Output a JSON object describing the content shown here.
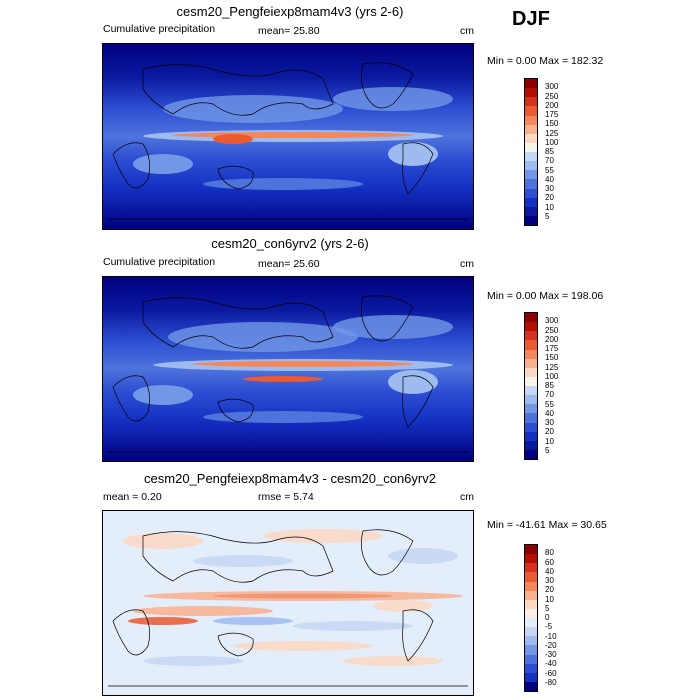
{
  "season": "DJF",
  "panels": [
    {
      "title": "cesm20_Pengfeiexp8mam4v3 (yrs 2-6)",
      "left_label": "Cumulative precipitation",
      "mid_label": "mean=  25.80",
      "unit": "cm",
      "minmax": "Min =   0.00 Max = 182.32",
      "colorbar": {
        "labels": [
          "300",
          "250",
          "200",
          "175",
          "150",
          "125",
          "100",
          "85",
          "70",
          "55",
          "40",
          "30",
          "20",
          "10",
          "5"
        ],
        "colors": [
          "#8b0000",
          "#b40e00",
          "#d7301f",
          "#ec5a32",
          "#f4875a",
          "#fab08d",
          "#fcd8c2",
          "#f7f2ea",
          "#c6d7f5",
          "#9ebbf0",
          "#7297e6",
          "#4f73dc",
          "#2d4fd3",
          "#1430c2",
          "#0a1aa0",
          "#000080"
        ]
      }
    },
    {
      "title": "cesm20_con6yrv2 (yrs 2-6)",
      "left_label": "Cumulative precipitation",
      "mid_label": "mean=  25.60",
      "unit": "cm",
      "minmax": "Min =   0.00 Max = 198.06",
      "colorbar": {
        "labels": [
          "300",
          "250",
          "200",
          "175",
          "150",
          "125",
          "100",
          "85",
          "70",
          "55",
          "40",
          "30",
          "20",
          "10",
          "5"
        ],
        "colors": [
          "#8b0000",
          "#b40e00",
          "#d7301f",
          "#ec5a32",
          "#f4875a",
          "#fab08d",
          "#fcd8c2",
          "#f7f2ea",
          "#c6d7f5",
          "#9ebbf0",
          "#7297e6",
          "#4f73dc",
          "#2d4fd3",
          "#1430c2",
          "#0a1aa0",
          "#000080"
        ]
      }
    },
    {
      "title": "cesm20_Pengfeiexp8mam4v3 - cesm20_con6yrv2",
      "left_label": "mean =   0.20",
      "mid_label": "rmse =   5.74",
      "unit": "cm",
      "minmax": "Min = -41.61 Max =  30.65",
      "colorbar": {
        "labels": [
          "80",
          "60",
          "40",
          "30",
          "20",
          "10",
          "5",
          "0",
          "-5",
          "-10",
          "-20",
          "-30",
          "-40",
          "-60",
          "-80"
        ],
        "colors": [
          "#8b0000",
          "#b40e00",
          "#d7301f",
          "#ec5a32",
          "#f4875a",
          "#fab08d",
          "#fcd8c2",
          "#fdeee6",
          "#e4eefb",
          "#c6d7f5",
          "#9ebbf0",
          "#7297e6",
          "#4f73dc",
          "#2d4fd3",
          "#1430c2",
          "#000080"
        ]
      }
    }
  ]
}
